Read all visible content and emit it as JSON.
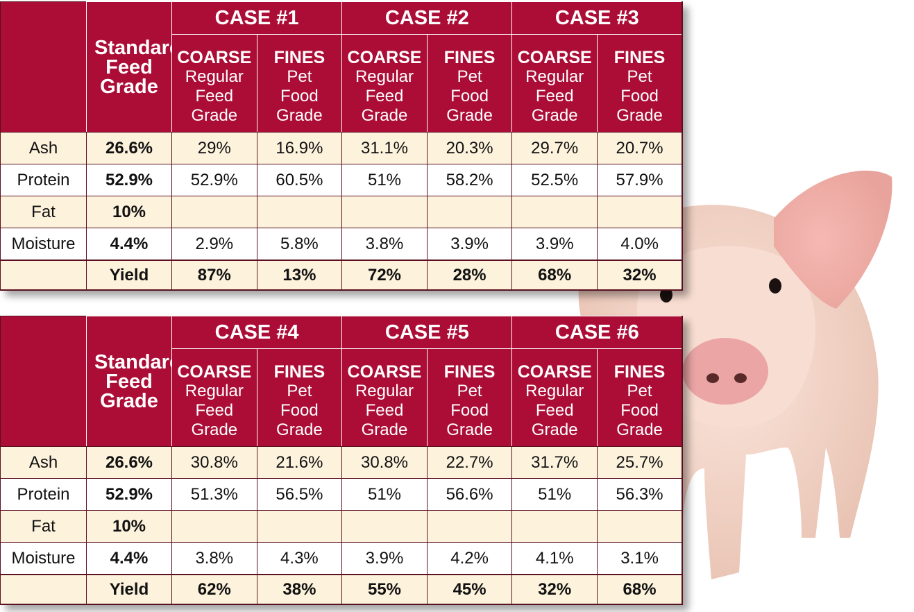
{
  "header": {
    "standard_label": "Standard Feed Grade",
    "coarse_label": "COARSE",
    "coarse_desc": "Regular Feed Grade",
    "fines_label": "FINES",
    "fines_desc": "Pet Food Grade"
  },
  "rows": [
    "Ash",
    "Protein",
    "Fat",
    "Moisture"
  ],
  "standard": {
    "ash": "26.6%",
    "protein": "52.9%",
    "fat": "10%",
    "moisture": "4.4%",
    "yield_label": "Yield"
  },
  "table1": {
    "cases": [
      "CASE #1",
      "CASE #2",
      "CASE #3"
    ],
    "ash": [
      "29%",
      "16.9%",
      "31.1%",
      "20.3%",
      "29.7%",
      "20.7%"
    ],
    "protein": [
      "52.9%",
      "60.5%",
      "51%",
      "58.2%",
      "52.5%",
      "57.9%"
    ],
    "fat": [
      "",
      "",
      "",
      "",
      "",
      ""
    ],
    "moisture": [
      "2.9%",
      "5.8%",
      "3.8%",
      "3.9%",
      "3.9%",
      "4.0%"
    ],
    "yield": [
      "87%",
      "13%",
      "72%",
      "28%",
      "68%",
      "32%"
    ]
  },
  "table2": {
    "cases": [
      "CASE #4",
      "CASE #5",
      "CASE #6"
    ],
    "ash": [
      "30.8%",
      "21.6%",
      "30.8%",
      "22.7%",
      "31.7%",
      "25.7%"
    ],
    "protein": [
      "51.3%",
      "56.5%",
      "51%",
      "56.6%",
      "51%",
      "56.3%"
    ],
    "fat": [
      "",
      "",
      "",
      "",
      "",
      ""
    ],
    "moisture": [
      "3.8%",
      "4.3%",
      "3.9%",
      "4.2%",
      "4.1%",
      "3.1%"
    ],
    "yield": [
      "62%",
      "38%",
      "55%",
      "45%",
      "32%",
      "68%"
    ]
  },
  "colors": {
    "header_bg": "#ac0d36",
    "row_tint": "#fdf3dd",
    "border": "#5a1020"
  },
  "image": {
    "icon": "pig-photo"
  }
}
